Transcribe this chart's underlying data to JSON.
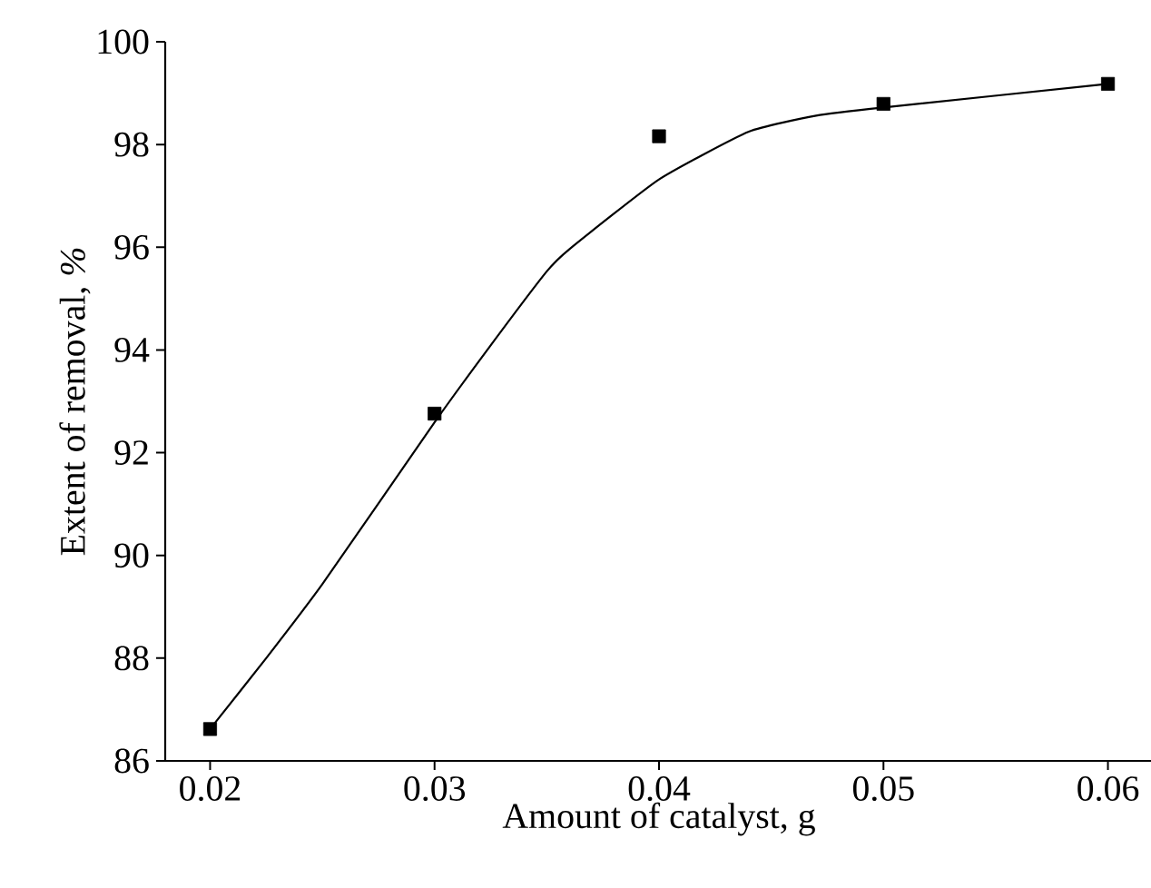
{
  "chart_data": {
    "type": "scatter",
    "xlabel": "Amount of catalyst, g",
    "ylabel": "Extent of removal, *%*",
    "xlim": [
      0.018,
      0.062
    ],
    "ylim": [
      86,
      100
    ],
    "xticks": [
      {
        "value": 0.02,
        "label": "0.02"
      },
      {
        "value": 0.03,
        "label": "0.03"
      },
      {
        "value": 0.04,
        "label": "0.04"
      },
      {
        "value": 0.05,
        "label": "0.05"
      },
      {
        "value": 0.06,
        "label": "0.06"
      }
    ],
    "yticks": [
      86,
      88,
      90,
      92,
      94,
      96,
      98,
      100
    ],
    "grid": false,
    "series": [
      {
        "type": "scatter",
        "color": "#000000",
        "marker": "square",
        "x": [
          0.02,
          0.03,
          0.04,
          0.05,
          0.06
        ],
        "values": [
          86.62,
          92.76,
          98.16,
          98.79,
          99.18
        ]
      },
      {
        "type": "line",
        "color": "#000000",
        "marker": "none",
        "line_style": "solid",
        "x": [
          0.02,
          0.0225,
          0.025,
          0.03,
          0.0325,
          0.035,
          0.036,
          0.04,
          0.044,
          0.047,
          0.05,
          0.06
        ],
        "values": [
          86.62,
          88.0,
          89.44,
          92.59,
          94.09,
          95.53,
          95.96,
          97.32,
          98.25,
          98.56,
          98.72,
          99.18
        ]
      }
    ]
  }
}
